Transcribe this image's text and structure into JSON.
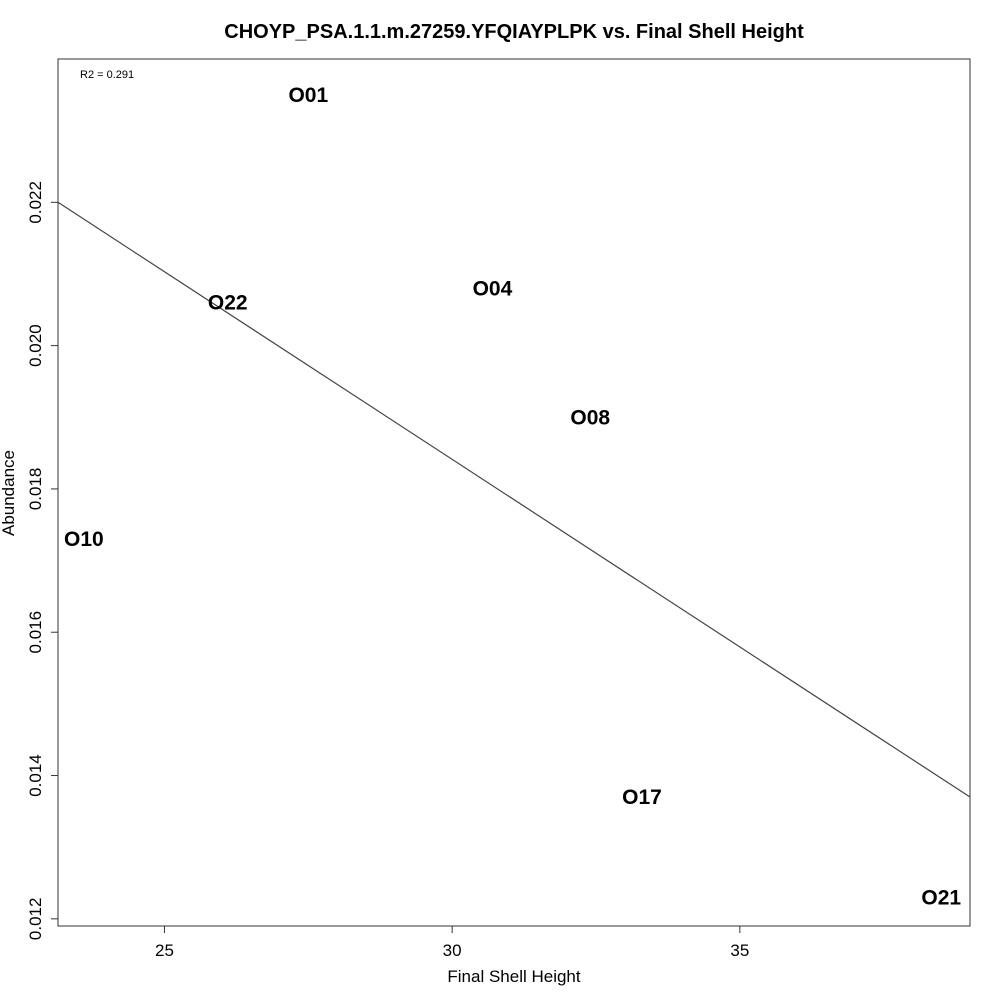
{
  "chart_data": {
    "type": "scatter",
    "title": "CHOYP_PSA.1.1.m.27259.YFQIAYPLPK vs. Final Shell Height",
    "xlabel": "Final Shell Height",
    "ylabel": "Abundance",
    "xlim": [
      23.15,
      39.0
    ],
    "ylim": [
      0.0119,
      0.024
    ],
    "x_ticks": [
      25,
      30,
      35
    ],
    "x_tick_labels": [
      "25",
      "30",
      "35"
    ],
    "y_ticks": [
      0.012,
      0.014,
      0.016,
      0.018,
      0.02,
      0.022
    ],
    "y_tick_labels": [
      "0.012",
      "0.014",
      "0.016",
      "0.018",
      "0.020",
      "0.022"
    ],
    "grid": false,
    "annotation": "R2 = 0.291",
    "points": [
      {
        "label": "O01",
        "x": 27.5,
        "y": 0.0235
      },
      {
        "label": "O22",
        "x": 26.1,
        "y": 0.0206
      },
      {
        "label": "O04",
        "x": 30.7,
        "y": 0.0208
      },
      {
        "label": "O08",
        "x": 32.4,
        "y": 0.019
      },
      {
        "label": "O10",
        "x": 23.6,
        "y": 0.0173
      },
      {
        "label": "O17",
        "x": 33.3,
        "y": 0.0137
      },
      {
        "label": "O21",
        "x": 38.5,
        "y": 0.0123
      }
    ],
    "fit_line": {
      "x_start": 23.15,
      "y_start": 0.022,
      "x_end": 39.0,
      "y_end": 0.0137
    }
  }
}
